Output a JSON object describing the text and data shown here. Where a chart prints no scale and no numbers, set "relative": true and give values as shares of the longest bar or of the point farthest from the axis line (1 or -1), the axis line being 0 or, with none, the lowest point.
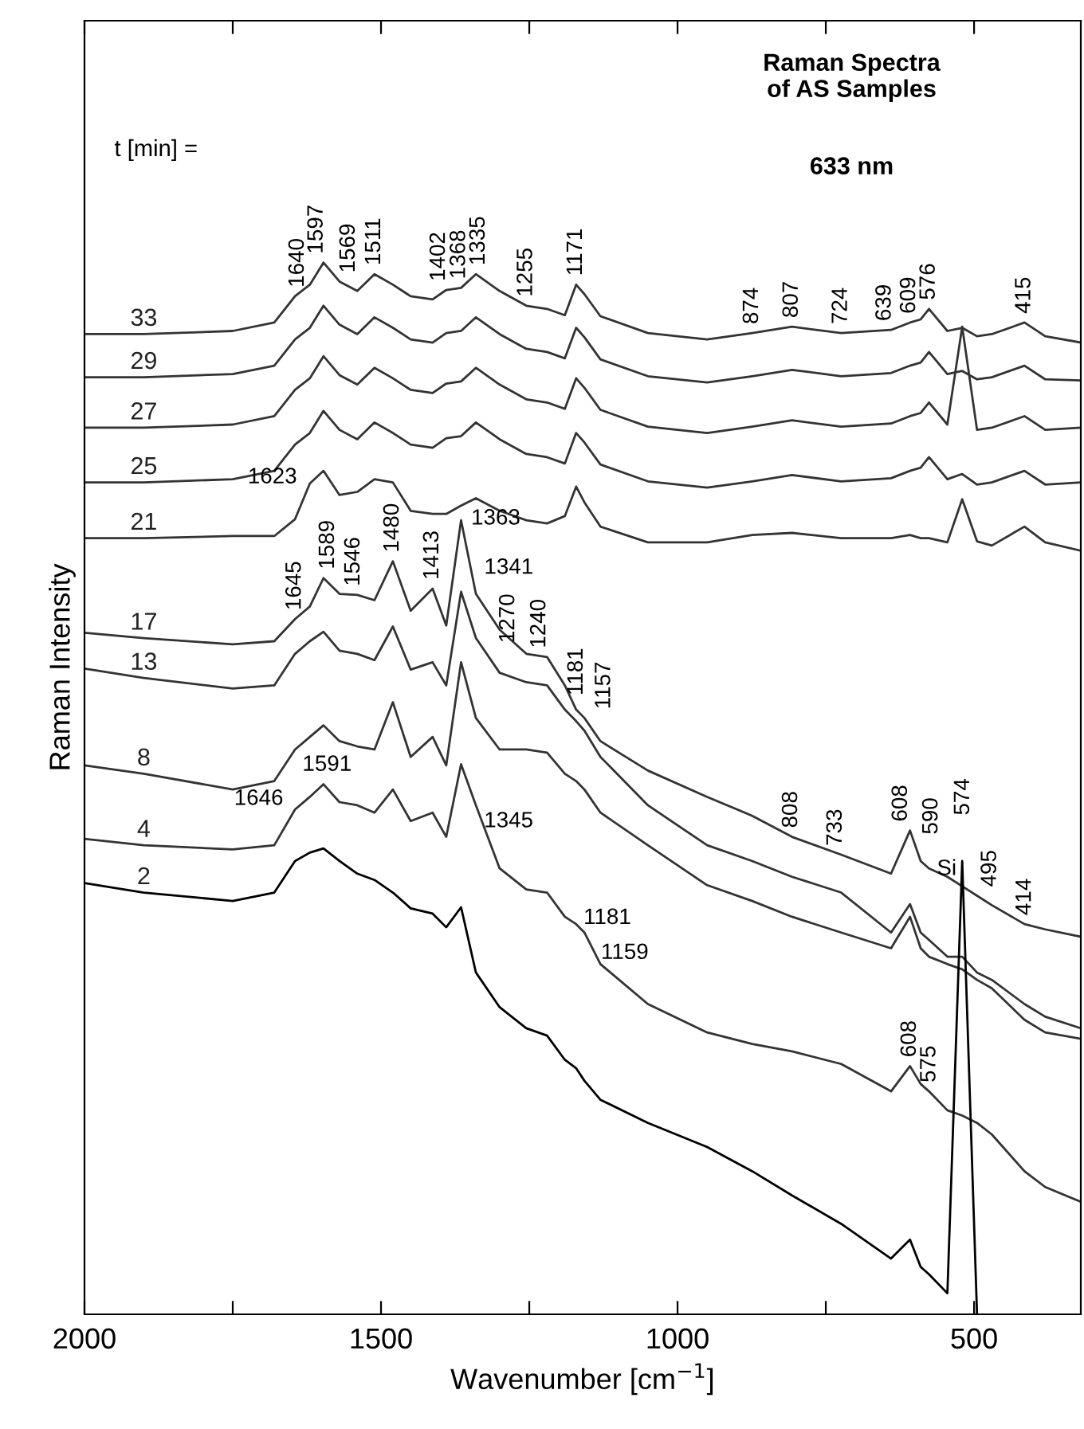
{
  "chart_data": {
    "type": "line",
    "title": "Raman Spectra\nof AS Samples",
    "subtitle": "633 nm",
    "xlabel": "Wavenumber [cm$^{−1}$]",
    "ylabel": "Raman Intensity",
    "relative": true,
    "legend": false,
    "grid": false,
    "xlim": [
      2000,
      320
    ],
    "xticks": [
      2000,
      {
        "value": 1750,
        "label": null
      },
      1500,
      {
        "value": 1250,
        "label": null
      },
      1000,
      {
        "value": 750,
        "label": null
      },
      500
    ],
    "x": [
      2000,
      1900,
      1750,
      1680,
      1645,
      1620,
      1597,
      1570,
      1540,
      1511,
      1480,
      1450,
      1413,
      1390,
      1365,
      1340,
      1300,
      1255,
      1220,
      1190,
      1171,
      1157,
      1130,
      1050,
      950,
      874,
      807,
      724,
      640,
      608,
      590,
      576,
      545,
      520,
      495,
      470,
      415,
      380,
      320
    ],
    "series": [
      {
        "name": "33",
        "color": "#333333",
        "values": [
          0.932,
          0.932,
          0.935,
          0.943,
          0.968,
          0.979,
          1.0,
          0.982,
          0.973,
          0.989,
          0.979,
          0.968,
          0.965,
          0.974,
          0.976,
          0.989,
          0.973,
          0.959,
          0.956,
          0.95,
          0.979,
          0.97,
          0.949,
          0.933,
          0.927,
          0.933,
          0.939,
          0.933,
          0.936,
          0.943,
          0.946,
          0.956,
          0.935,
          0.938,
          0.93,
          0.932,
          0.943,
          0.93,
          0.924
        ]
      },
      {
        "name": "29",
        "color": "#333333",
        "values": [
          0.891,
          0.891,
          0.894,
          0.902,
          0.927,
          0.938,
          0.959,
          0.941,
          0.932,
          0.948,
          0.938,
          0.927,
          0.924,
          0.933,
          0.935,
          0.948,
          0.932,
          0.918,
          0.915,
          0.909,
          0.938,
          0.929,
          0.908,
          0.892,
          0.886,
          0.892,
          0.898,
          0.892,
          0.895,
          0.902,
          0.905,
          0.915,
          0.894,
          0.897,
          0.889,
          0.891,
          0.902,
          0.889,
          0.888
        ]
      },
      {
        "name": "27",
        "color": "#333333",
        "values": [
          0.843,
          0.843,
          0.846,
          0.854,
          0.879,
          0.89,
          0.911,
          0.893,
          0.884,
          0.9,
          0.89,
          0.879,
          0.876,
          0.885,
          0.887,
          0.9,
          0.884,
          0.87,
          0.867,
          0.861,
          0.89,
          0.881,
          0.86,
          0.844,
          0.838,
          0.844,
          0.85,
          0.844,
          0.847,
          0.854,
          0.857,
          0.867,
          0.846,
          0.939,
          0.841,
          0.843,
          0.854,
          0.841,
          0.843
        ]
      },
      {
        "name": "25",
        "color": "#333333",
        "values": [
          0.791,
          0.791,
          0.794,
          0.802,
          0.827,
          0.838,
          0.859,
          0.841,
          0.832,
          0.848,
          0.838,
          0.827,
          0.824,
          0.833,
          0.835,
          0.848,
          0.832,
          0.818,
          0.815,
          0.809,
          0.838,
          0.829,
          0.808,
          0.792,
          0.786,
          0.792,
          0.798,
          0.792,
          0.795,
          0.802,
          0.805,
          0.815,
          0.794,
          0.799,
          0.789,
          0.791,
          0.802,
          0.789,
          0.791
        ]
      },
      {
        "name": "21",
        "color": "#333333",
        "values": [
          0.738,
          0.738,
          0.74,
          0.74,
          0.756,
          0.79,
          0.802,
          0.779,
          0.782,
          0.794,
          0.791,
          0.764,
          0.761,
          0.761,
          0.769,
          0.776,
          0.764,
          0.755,
          0.752,
          0.759,
          0.787,
          0.772,
          0.749,
          0.734,
          0.734,
          0.741,
          0.743,
          0.738,
          0.738,
          0.741,
          0.738,
          0.738,
          0.734,
          0.775,
          0.735,
          0.731,
          0.749,
          0.734,
          0.726
        ]
      },
      {
        "name": "17",
        "color": "#333333",
        "values": [
          0.648,
          0.643,
          0.637,
          0.64,
          0.661,
          0.673,
          0.7,
          0.685,
          0.684,
          0.679,
          0.716,
          0.669,
          0.69,
          0.655,
          0.755,
          0.685,
          0.651,
          0.628,
          0.625,
          0.598,
          0.575,
          0.567,
          0.545,
          0.517,
          0.492,
          0.474,
          0.454,
          0.437,
          0.419,
          0.46,
          0.431,
          0.424,
          0.416,
          0.407,
          0.398,
          0.389,
          0.371,
          0.366,
          0.359
        ]
      },
      {
        "name": "13",
        "color": "#333333",
        "values": [
          0.614,
          0.605,
          0.595,
          0.598,
          0.628,
          0.64,
          0.649,
          0.631,
          0.628,
          0.622,
          0.654,
          0.613,
          0.62,
          0.598,
          0.687,
          0.643,
          0.61,
          0.601,
          0.598,
          0.575,
          0.564,
          0.555,
          0.53,
          0.484,
          0.446,
          0.431,
          0.416,
          0.401,
          0.363,
          0.39,
          0.363,
          0.356,
          0.34,
          0.34,
          0.325,
          0.318,
          0.295,
          0.283,
          0.272
        ]
      },
      {
        "name": "8",
        "color": "#333333",
        "values": [
          0.522,
          0.514,
          0.499,
          0.507,
          0.537,
          0.549,
          0.56,
          0.545,
          0.54,
          0.537,
          0.582,
          0.53,
          0.549,
          0.522,
          0.62,
          0.567,
          0.537,
          0.537,
          0.534,
          0.514,
          0.507,
          0.499,
          0.477,
          0.446,
          0.408,
          0.393,
          0.378,
          0.363,
          0.348,
          0.378,
          0.348,
          0.34,
          0.333,
          0.328,
          0.318,
          0.31,
          0.28,
          0.268,
          0.262
        ]
      },
      {
        "name": "4",
        "color": "#333333",
        "values": [
          0.452,
          0.446,
          0.442,
          0.446,
          0.48,
          0.492,
          0.504,
          0.487,
          0.484,
          0.477,
          0.499,
          0.469,
          0.477,
          0.454,
          0.523,
          0.484,
          0.424,
          0.404,
          0.401,
          0.378,
          0.371,
          0.363,
          0.333,
          0.295,
          0.268,
          0.257,
          0.25,
          0.238,
          0.212,
          0.236,
          0.219,
          0.212,
          0.194,
          0.189,
          0.182,
          0.171,
          0.136,
          0.121,
          0.107
        ]
      },
      {
        "name": "2",
        "color": "#000000",
        "values": [
          0.41,
          0.401,
          0.393,
          0.401,
          0.431,
          0.439,
          0.443,
          0.431,
          0.419,
          0.413,
          0.401,
          0.386,
          0.381,
          0.368,
          0.387,
          0.325,
          0.292,
          0.272,
          0.265,
          0.242,
          0.234,
          0.222,
          0.204,
          0.182,
          0.159,
          0.136,
          0.113,
          0.086,
          0.053,
          0.071,
          0.045,
          0.038,
          0.02,
          0.431,
          0,
          null,
          null,
          null,
          null
        ]
      }
    ],
    "annotations": [
      "t [min] =",
      {
        "text": "1640",
        "x": 1640,
        "y": 0.968
      },
      {
        "text": "1597",
        "x": 1597,
        "y": 1.0
      },
      {
        "text": "1569",
        "x": 1569,
        "y": 0.982
      },
      {
        "text": "1511",
        "x": 1511,
        "y": 0.989
      },
      {
        "text": "1402",
        "x": 1402,
        "y": 0.974
      },
      {
        "text": "1368",
        "x": 1368,
        "y": 0.976
      },
      {
        "text": "1335",
        "x": 1335,
        "y": 0.989
      },
      {
        "text": "1255",
        "x": 1255,
        "y": 0.959
      },
      {
        "text": "1171",
        "x": 1171,
        "y": 0.979
      },
      {
        "text": "874",
        "x": 874,
        "y": 0.933
      },
      {
        "text": "807",
        "x": 807,
        "y": 0.939
      },
      {
        "text": "724",
        "x": 724,
        "y": 0.933
      },
      {
        "text": "639",
        "x": 639,
        "y": 0.936
      },
      {
        "text": "609",
        "x": 609,
        "y": 0.943
      },
      {
        "text": "576",
        "x": 576,
        "y": 0.956
      },
      {
        "text": "415",
        "x": 415,
        "y": 0.943
      },
      {
        "text": "1623",
        "x": 1623,
        "y": 0.79
      },
      {
        "text": "1645",
        "x": 1645,
        "y": 0.661
      },
      {
        "text": "1589",
        "x": 1589,
        "y": 0.7
      },
      {
        "text": "1546",
        "x": 1546,
        "y": 0.684
      },
      {
        "text": "1480",
        "x": 1480,
        "y": 0.716
      },
      {
        "text": "1413",
        "x": 1413,
        "y": 0.69
      },
      {
        "text": "1363",
        "x": 1363,
        "y": 0.755
      },
      {
        "text": "1341",
        "x": 1341,
        "y": 0.685
      },
      {
        "text": "1270",
        "x": 1270,
        "y": 0.63
      },
      {
        "text": "1240",
        "x": 1240,
        "y": 0.625
      },
      {
        "text": "1181",
        "x": 1181,
        "y": 0.58
      },
      {
        "text": "1157",
        "x": 1157,
        "y": 0.567
      },
      {
        "text": "808",
        "x": 808,
        "y": 0.454
      },
      {
        "text": "733",
        "x": 733,
        "y": 0.437
      },
      {
        "text": "608",
        "x": 608,
        "y": 0.46
      },
      {
        "text": "590",
        "x": 590,
        "y": 0.431
      },
      {
        "text": "574",
        "x": 574,
        "y": 0.424
      },
      {
        "text": "Si",
        "x": 520,
        "y": 0.407
      },
      {
        "text": "495",
        "x": 495,
        "y": 0.398
      },
      {
        "text": "414",
        "x": 414,
        "y": 0.371
      },
      {
        "text": "1646",
        "x": 1646,
        "y": 0.48
      },
      {
        "text": "1591",
        "x": 1591,
        "y": 0.504
      },
      {
        "text": "1345",
        "x": 1345,
        "y": 0.484
      },
      {
        "text": "1181",
        "x": 1181,
        "y": 0.371
      },
      {
        "text": "1159",
        "x": 1159,
        "y": 0.363
      },
      {
        "text": "608",
        "x": 608,
        "y": 0.236
      },
      {
        "text": "575",
        "x": 575,
        "y": 0.212
      }
    ]
  }
}
